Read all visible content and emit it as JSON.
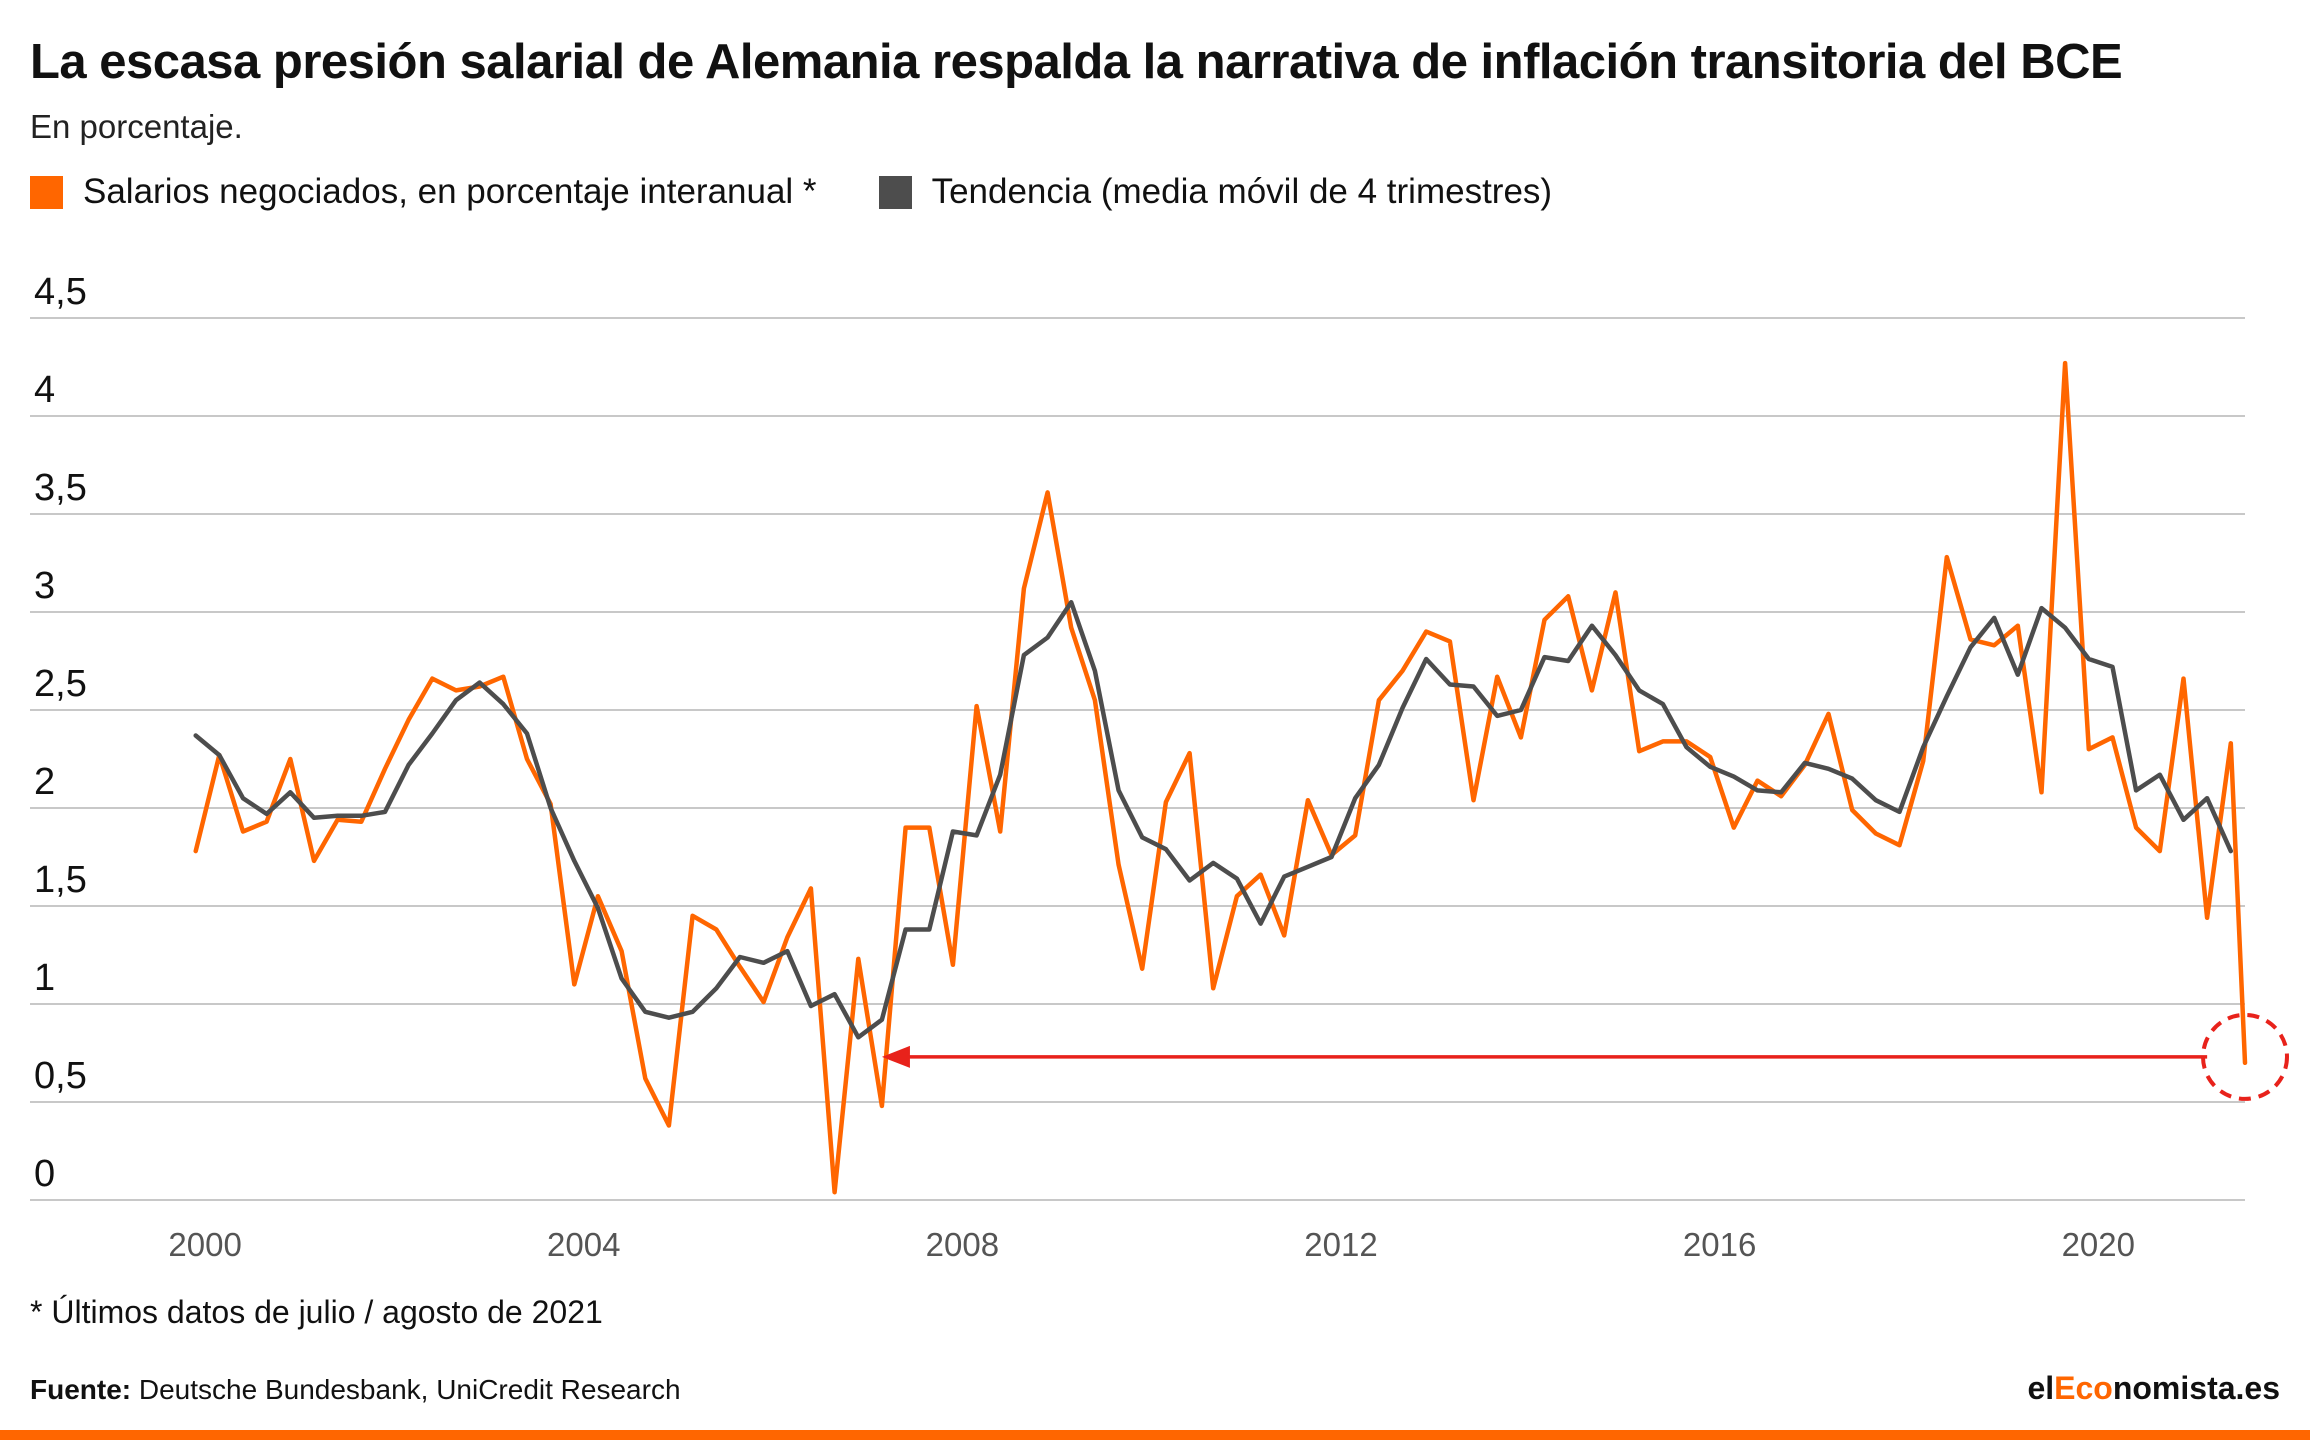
{
  "header": {
    "title": "La escasa presión salarial de Alemania respalda la narrativa de inflación transitoria del BCE",
    "subtitle": "En porcentaje."
  },
  "legend": [
    {
      "label": "Salarios negociados, en porcentaje interanual *",
      "color": "#ff6600"
    },
    {
      "label": "Tendencia (media móvil de 4 trimestres)",
      "color": "#4d4d4d"
    }
  ],
  "footnote": "* Últimos datos de julio / agosto de 2021",
  "source": {
    "label": "Fuente:",
    "text": "Deutsche Bundesbank, UniCredit Research"
  },
  "brand": {
    "pre": "el",
    "accent": "Eco",
    "post": "nomista.es"
  },
  "colors": {
    "orange": "#ff6600",
    "gray": "#4d4d4d",
    "grid": "#c8c8c8",
    "annotation": "#e8221b",
    "accent": "#ff6600"
  },
  "chart_data": {
    "type": "line",
    "y_ticks": [
      "0",
      "0,5",
      "1",
      "1,5",
      "2",
      "2,5",
      "3",
      "3,5",
      "4",
      "4,5"
    ],
    "ylim": [
      0,
      4.5
    ],
    "x_ticks": [
      "2000",
      "2004",
      "2008",
      "2012",
      "2016",
      "2020"
    ],
    "xlim": [
      1998.15,
      2021.55
    ],
    "grid": true,
    "legend_position": "top-left",
    "series": [
      {
        "name": "Salarios negociados, en porcentaje interanual *",
        "color": "#ff6600",
        "points": [
          [
            1999.9,
            1.78
          ],
          [
            2000.15,
            2.27
          ],
          [
            2000.4,
            1.88
          ],
          [
            2000.65,
            1.93
          ],
          [
            2000.9,
            2.25
          ],
          [
            2001.15,
            1.73
          ],
          [
            2001.4,
            1.94
          ],
          [
            2001.65,
            1.93
          ],
          [
            2001.9,
            2.2
          ],
          [
            2002.15,
            2.45
          ],
          [
            2002.4,
            2.66
          ],
          [
            2002.65,
            2.6
          ],
          [
            2002.9,
            2.62
          ],
          [
            2003.15,
            2.67
          ],
          [
            2003.4,
            2.25
          ],
          [
            2003.65,
            2.02
          ],
          [
            2003.9,
            1.1
          ],
          [
            2004.15,
            1.55
          ],
          [
            2004.4,
            1.27
          ],
          [
            2004.65,
            0.62
          ],
          [
            2004.9,
            0.38
          ],
          [
            2005.15,
            1.45
          ],
          [
            2005.4,
            1.38
          ],
          [
            2005.65,
            1.19
          ],
          [
            2005.9,
            1.01
          ],
          [
            2006.15,
            1.34
          ],
          [
            2006.4,
            1.59
          ],
          [
            2006.65,
            0.04
          ],
          [
            2006.9,
            1.23
          ],
          [
            2007.15,
            0.48
          ],
          [
            2007.4,
            1.9
          ],
          [
            2007.65,
            1.9
          ],
          [
            2007.9,
            1.2
          ],
          [
            2008.15,
            2.52
          ],
          [
            2008.4,
            1.88
          ],
          [
            2008.65,
            3.12
          ],
          [
            2008.9,
            3.61
          ],
          [
            2009.15,
            2.92
          ],
          [
            2009.4,
            2.55
          ],
          [
            2009.65,
            1.71
          ],
          [
            2009.9,
            1.18
          ],
          [
            2010.15,
            2.03
          ],
          [
            2010.4,
            2.28
          ],
          [
            2010.65,
            1.08
          ],
          [
            2010.9,
            1.55
          ],
          [
            2011.15,
            1.66
          ],
          [
            2011.4,
            1.35
          ],
          [
            2011.65,
            2.04
          ],
          [
            2011.9,
            1.76
          ],
          [
            2012.15,
            1.86
          ],
          [
            2012.4,
            2.55
          ],
          [
            2012.65,
            2.7
          ],
          [
            2012.9,
            2.9
          ],
          [
            2013.15,
            2.85
          ],
          [
            2013.4,
            2.04
          ],
          [
            2013.65,
            2.67
          ],
          [
            2013.9,
            2.36
          ],
          [
            2014.15,
            2.96
          ],
          [
            2014.4,
            3.08
          ],
          [
            2014.65,
            2.6
          ],
          [
            2014.9,
            3.1
          ],
          [
            2015.15,
            2.29
          ],
          [
            2015.4,
            2.34
          ],
          [
            2015.65,
            2.34
          ],
          [
            2015.9,
            2.26
          ],
          [
            2016.15,
            1.9
          ],
          [
            2016.4,
            2.14
          ],
          [
            2016.65,
            2.06
          ],
          [
            2016.9,
            2.22
          ],
          [
            2017.15,
            2.48
          ],
          [
            2017.4,
            1.99
          ],
          [
            2017.65,
            1.87
          ],
          [
            2017.9,
            1.81
          ],
          [
            2018.15,
            2.24
          ],
          [
            2018.4,
            3.28
          ],
          [
            2018.65,
            2.86
          ],
          [
            2018.9,
            2.83
          ],
          [
            2019.15,
            2.93
          ],
          [
            2019.4,
            2.08
          ],
          [
            2019.65,
            4.27
          ],
          [
            2019.9,
            2.3
          ],
          [
            2020.15,
            2.36
          ],
          [
            2020.4,
            1.9
          ],
          [
            2020.65,
            1.78
          ],
          [
            2020.9,
            2.66
          ],
          [
            2021.15,
            1.44
          ],
          [
            2021.4,
            2.33
          ],
          [
            2021.55,
            0.7
          ]
        ]
      },
      {
        "name": "Tendencia (media móvil de 4 trimestres)",
        "color": "#4d4d4d",
        "points": [
          [
            1999.9,
            2.37
          ],
          [
            2000.15,
            2.27
          ],
          [
            2000.4,
            2.05
          ],
          [
            2000.65,
            1.97
          ],
          [
            2000.9,
            2.08
          ],
          [
            2001.15,
            1.95
          ],
          [
            2001.4,
            1.96
          ],
          [
            2001.65,
            1.96
          ],
          [
            2001.9,
            1.98
          ],
          [
            2002.15,
            2.22
          ],
          [
            2002.4,
            2.38
          ],
          [
            2002.65,
            2.55
          ],
          [
            2002.9,
            2.64
          ],
          [
            2003.15,
            2.53
          ],
          [
            2003.4,
            2.38
          ],
          [
            2003.65,
            2.0
          ],
          [
            2003.9,
            1.73
          ],
          [
            2004.15,
            1.49
          ],
          [
            2004.4,
            1.13
          ],
          [
            2004.65,
            0.96
          ],
          [
            2004.9,
            0.93
          ],
          [
            2005.15,
            0.96
          ],
          [
            2005.4,
            1.08
          ],
          [
            2005.65,
            1.24
          ],
          [
            2005.9,
            1.21
          ],
          [
            2006.15,
            1.27
          ],
          [
            2006.4,
            0.99
          ],
          [
            2006.65,
            1.05
          ],
          [
            2006.9,
            0.83
          ],
          [
            2007.15,
            0.92
          ],
          [
            2007.4,
            1.38
          ],
          [
            2007.65,
            1.38
          ],
          [
            2007.9,
            1.88
          ],
          [
            2008.15,
            1.86
          ],
          [
            2008.4,
            2.17
          ],
          [
            2008.65,
            2.78
          ],
          [
            2008.9,
            2.87
          ],
          [
            2009.15,
            3.05
          ],
          [
            2009.4,
            2.7
          ],
          [
            2009.65,
            2.09
          ],
          [
            2009.9,
            1.85
          ],
          [
            2010.15,
            1.79
          ],
          [
            2010.4,
            1.63
          ],
          [
            2010.65,
            1.72
          ],
          [
            2010.9,
            1.64
          ],
          [
            2011.15,
            1.41
          ],
          [
            2011.4,
            1.65
          ],
          [
            2011.65,
            1.7
          ],
          [
            2011.9,
            1.75
          ],
          [
            2012.15,
            2.05
          ],
          [
            2012.4,
            2.22
          ],
          [
            2012.65,
            2.51
          ],
          [
            2012.9,
            2.76
          ],
          [
            2013.15,
            2.63
          ],
          [
            2013.4,
            2.62
          ],
          [
            2013.65,
            2.47
          ],
          [
            2013.9,
            2.5
          ],
          [
            2014.15,
            2.77
          ],
          [
            2014.4,
            2.75
          ],
          [
            2014.65,
            2.93
          ],
          [
            2014.9,
            2.78
          ],
          [
            2015.15,
            2.6
          ],
          [
            2015.4,
            2.53
          ],
          [
            2015.65,
            2.31
          ],
          [
            2015.9,
            2.21
          ],
          [
            2016.15,
            2.16
          ],
          [
            2016.4,
            2.09
          ],
          [
            2016.65,
            2.08
          ],
          [
            2016.9,
            2.23
          ],
          [
            2017.15,
            2.2
          ],
          [
            2017.4,
            2.15
          ],
          [
            2017.65,
            2.04
          ],
          [
            2017.9,
            1.98
          ],
          [
            2018.15,
            2.31
          ],
          [
            2018.4,
            2.57
          ],
          [
            2018.65,
            2.82
          ],
          [
            2018.9,
            2.97
          ],
          [
            2019.15,
            2.68
          ],
          [
            2019.4,
            3.02
          ],
          [
            2019.65,
            2.92
          ],
          [
            2019.9,
            2.76
          ],
          [
            2020.15,
            2.72
          ],
          [
            2020.4,
            2.09
          ],
          [
            2020.65,
            2.17
          ],
          [
            2020.9,
            1.94
          ],
          [
            2021.15,
            2.05
          ],
          [
            2021.4,
            1.78
          ]
        ]
      }
    ],
    "annotation": {
      "type": "arrow-with-circle",
      "from_x": 2021.15,
      "to_x": 2007.15,
      "y": 0.73,
      "circle_x": 2021.55,
      "circle_y": 0.73
    }
  }
}
